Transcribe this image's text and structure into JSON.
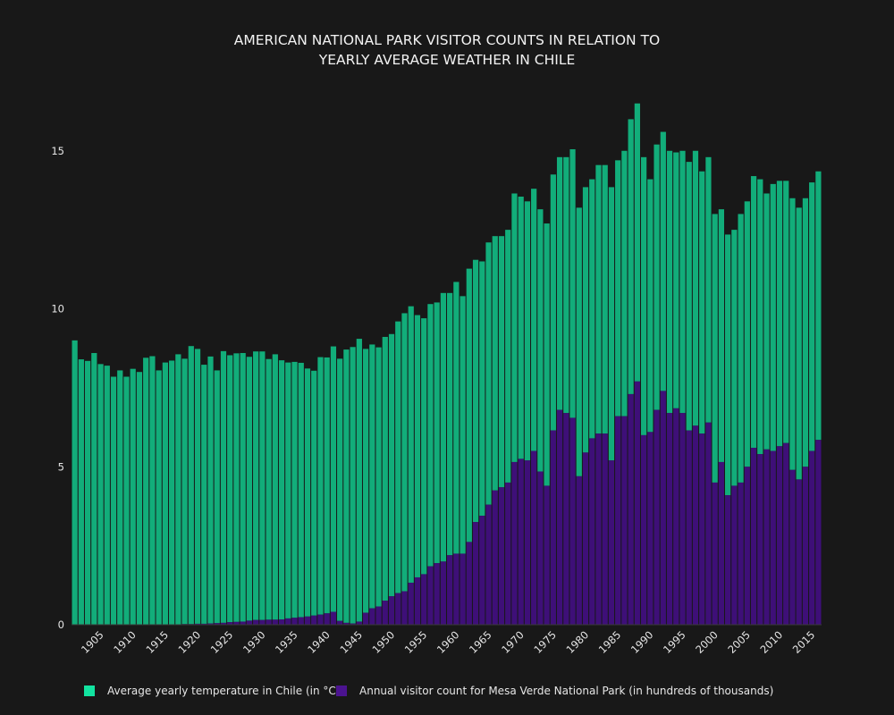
{
  "chart_data": {
    "type": "bar",
    "barmode": "stack",
    "title_lines": [
      "AMERICAN NATIONAL PARK VISITOR COUNTS IN RELATION TO",
      "YEARLY AVERAGE WEATHER IN CHILE"
    ],
    "x_start": 1901,
    "x_end": 2016,
    "x_tick_labels": [
      "1905",
      "1910",
      "1915",
      "1920",
      "1925",
      "1930",
      "1935",
      "1940",
      "1945",
      "1950",
      "1955",
      "1960",
      "1965",
      "1970",
      "1975",
      "1980",
      "1985",
      "1990",
      "1995",
      "2000",
      "2005",
      "2010",
      "2015"
    ],
    "y_tick_labels": [
      "0",
      "5",
      "10",
      "15"
    ],
    "ylim": [
      0,
      16.2
    ],
    "grid": false,
    "legend_position": "bottom",
    "colors": {
      "background": "#181818",
      "temperature": "#12ad7a",
      "visitors": "#3e0f78",
      "legend_temperature": "#12e3a0",
      "legend_visitors": "#4b1390",
      "axis_line": "#3a3a3a"
    },
    "series": [
      {
        "name": "Average yearly temperature in Chile (in °C)",
        "values": [
          9.0,
          8.4,
          8.35,
          8.6,
          8.25,
          8.2,
          7.85,
          8.05,
          7.85,
          8.1,
          8.0,
          8.45,
          8.5,
          8.05,
          8.3,
          8.35,
          8.55,
          8.4,
          8.8,
          8.7,
          8.2,
          8.45,
          8.0,
          8.6,
          8.45,
          8.5,
          8.5,
          8.35,
          8.5,
          8.5,
          8.25,
          8.4,
          8.2,
          8.1,
          8.1,
          8.05,
          7.85,
          7.75,
          8.15,
          8.1,
          8.4,
          8.3,
          8.65,
          8.75,
          8.95,
          8.35,
          8.35,
          8.2,
          8.35,
          8.3,
          8.6,
          8.8,
          8.75,
          8.3,
          8.1,
          8.3,
          8.25,
          8.5,
          8.3,
          8.6,
          8.15,
          8.65,
          8.3,
          8.05,
          8.3,
          8.05,
          7.95,
          8.0,
          8.5,
          8.3,
          8.2,
          8.3,
          8.3,
          8.3,
          8.1,
          8.0,
          8.1,
          8.5,
          8.5,
          8.4,
          8.2,
          8.5,
          8.5,
          8.65,
          8.1,
          8.4,
          8.7,
          8.8,
          8.8,
          8.0,
          8.4,
          8.2,
          8.3,
          8.1,
          8.3,
          8.5,
          8.7,
          8.3,
          8.4,
          8.5,
          8.0,
          8.25,
          8.1,
          8.5,
          8.4,
          8.6,
          8.7,
          8.1,
          8.45,
          8.4,
          8.3,
          8.6,
          8.6,
          8.5,
          8.5,
          8.5
        ]
      },
      {
        "name": "Annual visitor count for Mesa Verde National Park (in hundreds of thousands)",
        "values": [
          0.0,
          0.0,
          0.0,
          0.0,
          0.0,
          0.0,
          0.0,
          0.0,
          0.0,
          0.0,
          0.0,
          0.0,
          0.0,
          0.0,
          0.0,
          0.01,
          0.01,
          0.02,
          0.02,
          0.03,
          0.03,
          0.04,
          0.05,
          0.06,
          0.08,
          0.09,
          0.1,
          0.13,
          0.15,
          0.15,
          0.16,
          0.16,
          0.17,
          0.2,
          0.22,
          0.24,
          0.26,
          0.29,
          0.32,
          0.36,
          0.41,
          0.12,
          0.06,
          0.04,
          0.1,
          0.38,
          0.52,
          0.58,
          0.76,
          0.9,
          1.0,
          1.06,
          1.33,
          1.5,
          1.6,
          1.85,
          1.95,
          2.0,
          2.2,
          2.25,
          2.25,
          2.62,
          3.25,
          3.45,
          3.8,
          4.25,
          4.35,
          4.5,
          5.15,
          5.25,
          5.2,
          5.5,
          4.85,
          4.4,
          6.15,
          6.8,
          6.7,
          6.55,
          4.7,
          5.45,
          5.9,
          6.05,
          6.05,
          5.2,
          6.6,
          6.6,
          7.3,
          7.7,
          6.0,
          6.1,
          6.8,
          7.4,
          6.7,
          6.85,
          6.7,
          6.15,
          6.3,
          6.05,
          6.4,
          4.5,
          5.15,
          4.1,
          4.4,
          4.5,
          5.0,
          5.6,
          5.4,
          5.55,
          5.5,
          5.65,
          5.75,
          4.9,
          4.6,
          5.0,
          5.5,
          5.85
        ]
      }
    ]
  },
  "legend": {
    "items": [
      "Average yearly temperature in Chile (in °C)",
      "Annual visitor count for Mesa Verde National Park (in hundreds of thousands)"
    ]
  }
}
